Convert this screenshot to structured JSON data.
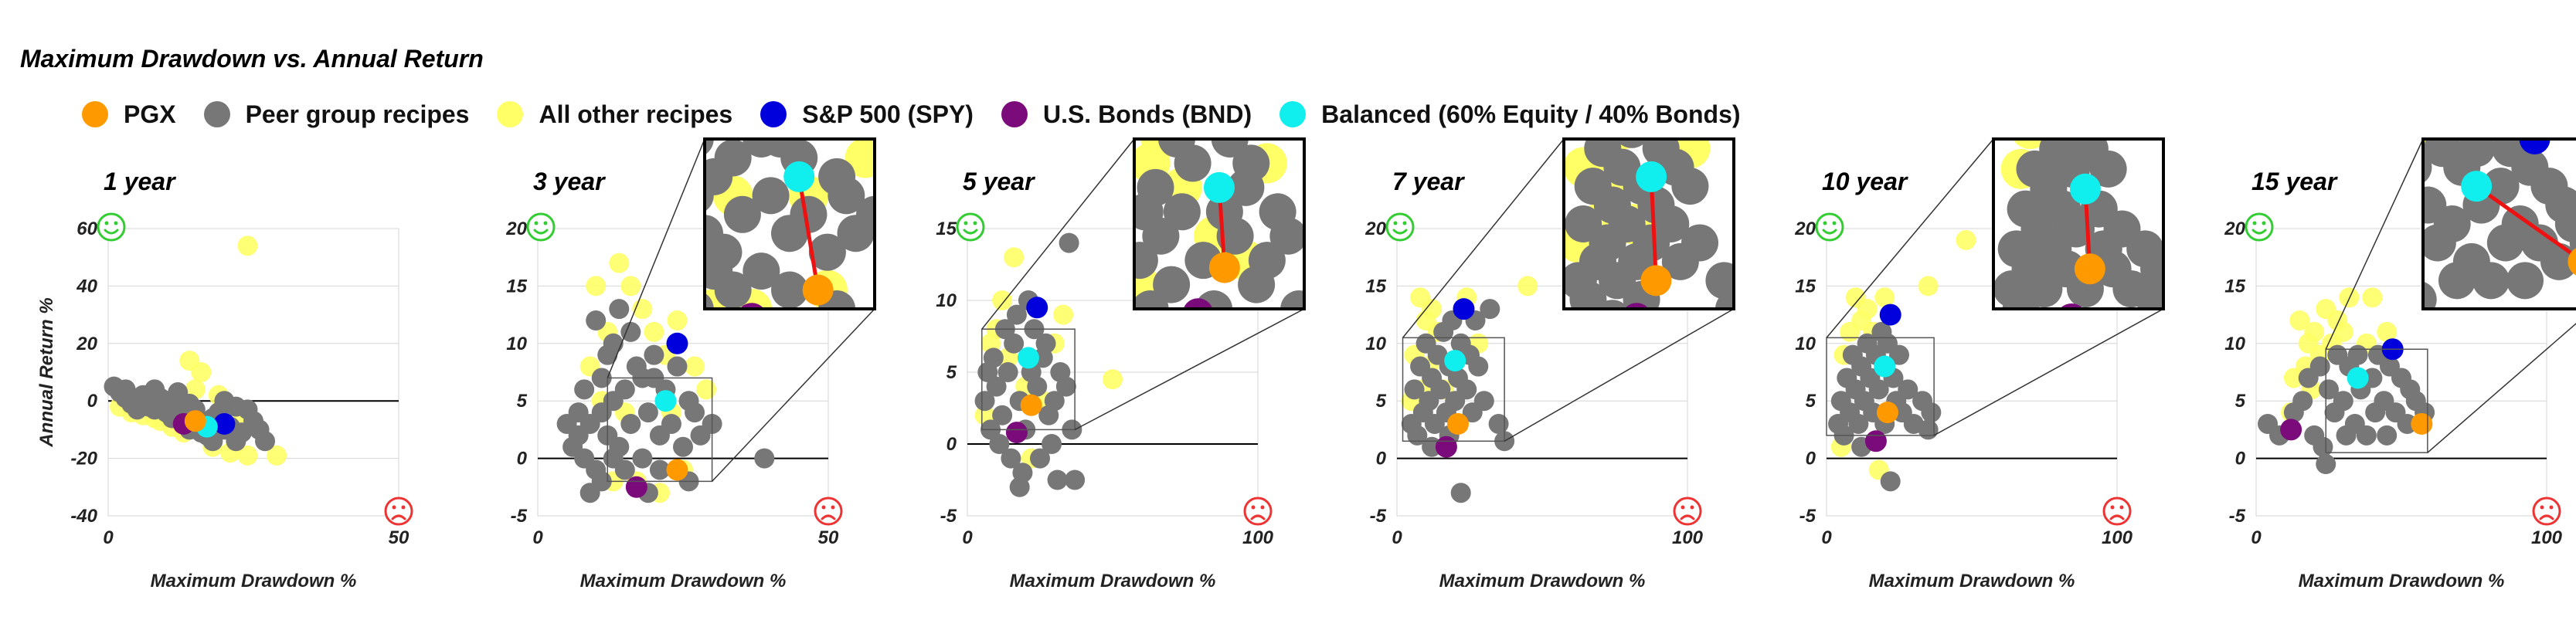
{
  "title": "Maximum Drawdown vs. Annual Return",
  "colors": {
    "pgx": "#FF9900",
    "peer": "#777777",
    "other": "#FFFF66",
    "spy": "#0000DD",
    "bnd": "#7B0A7B",
    "balanced": "#11EEEE",
    "smiley_good": "#33CC33",
    "smiley_bad": "#EE3333",
    "link_line": "#EE1111"
  },
  "legend": [
    {
      "label": "PGX",
      "color_key": "pgx",
      "icon": "legend-dot"
    },
    {
      "label": "Peer group recipes",
      "color_key": "peer",
      "icon": "legend-dot"
    },
    {
      "label": "All other recipes",
      "color_key": "other",
      "icon": "legend-dot"
    },
    {
      "label": "S&P 500 (SPY)",
      "color_key": "spy",
      "icon": "legend-dot"
    },
    {
      "label": "U.S. Bonds (BND)",
      "color_key": "bnd",
      "icon": "legend-dot"
    },
    {
      "label": "Balanced (60% Equity / 40% Bonds)",
      "color_key": "balanced",
      "icon": "legend-dot"
    }
  ],
  "chart_data": [
    {
      "type": "scatter",
      "title": "1 year",
      "xlabel": "Maximum Drawdown %",
      "ylabel": "Annual Return %",
      "xlim": [
        0,
        50
      ],
      "ylim": [
        -40,
        60
      ],
      "xticks": [
        0,
        50
      ],
      "yticks": [
        -40,
        -20,
        0,
        20,
        40,
        60
      ],
      "grid": true,
      "zoom_inset": false,
      "highlight": {
        "pgx": [
          15,
          -7
        ],
        "spy": [
          20,
          -8
        ],
        "bnd": [
          13,
          -8
        ],
        "balanced": [
          17,
          -9
        ]
      },
      "peer_points": [
        [
          1,
          5
        ],
        [
          2,
          3
        ],
        [
          3,
          1
        ],
        [
          4,
          -1
        ],
        [
          5,
          0
        ],
        [
          6,
          2
        ],
        [
          7,
          -2
        ],
        [
          8,
          -3
        ],
        [
          9,
          1
        ],
        [
          10,
          -4
        ],
        [
          11,
          -6
        ],
        [
          12,
          -2
        ],
        [
          13,
          -5
        ],
        [
          14,
          -10
        ],
        [
          15,
          -3
        ],
        [
          16,
          -8
        ],
        [
          17,
          -12
        ],
        [
          18,
          -6
        ],
        [
          19,
          -4
        ],
        [
          20,
          0
        ],
        [
          21,
          -9
        ],
        [
          22,
          -14
        ],
        [
          23,
          -11
        ],
        [
          24,
          -3
        ],
        [
          25,
          -7
        ],
        [
          26,
          -10
        ],
        [
          3,
          4
        ],
        [
          5,
          -3
        ],
        [
          8,
          4
        ],
        [
          10,
          0
        ],
        [
          12,
          3
        ],
        [
          14,
          -1
        ],
        [
          16,
          -11
        ],
        [
          18,
          -14
        ],
        [
          20,
          -10
        ],
        [
          22,
          -2
        ],
        [
          27,
          -14
        ]
      ],
      "other_points": [
        [
          24,
          54
        ],
        [
          14,
          14
        ],
        [
          16,
          10
        ],
        [
          2,
          -2
        ],
        [
          4,
          -4
        ],
        [
          6,
          -5
        ],
        [
          9,
          -7
        ],
        [
          11,
          -9
        ],
        [
          13,
          -11
        ],
        [
          18,
          -16
        ],
        [
          21,
          -18
        ],
        [
          24,
          -19
        ],
        [
          29,
          -19
        ],
        [
          8,
          -6
        ],
        [
          15,
          4
        ],
        [
          19,
          2
        ],
        [
          22,
          -5
        ]
      ]
    },
    {
      "type": "scatter",
      "title": "3 year",
      "xlabel": "Maximum Drawdown %",
      "ylabel": "Annual Return %",
      "xlim": [
        0,
        50
      ],
      "ylim": [
        -5,
        20
      ],
      "xticks": [
        0,
        50
      ],
      "yticks": [
        -5,
        0,
        5,
        10,
        15,
        20
      ],
      "grid": true,
      "zoom_inset": true,
      "zoom_box": {
        "x": [
          12,
          30
        ],
        "y": [
          -2,
          7
        ]
      },
      "highlight": {
        "pgx": [
          24,
          -1
        ],
        "spy": [
          24,
          10
        ],
        "bnd": [
          17,
          -2.5
        ],
        "balanced": [
          22,
          5
        ]
      },
      "peer_points": [
        [
          5,
          3
        ],
        [
          6,
          1
        ],
        [
          7,
          2
        ],
        [
          8,
          0
        ],
        [
          9,
          3
        ],
        [
          10,
          -1
        ],
        [
          11,
          4
        ],
        [
          12,
          2
        ],
        [
          13,
          5
        ],
        [
          14,
          1
        ],
        [
          15,
          6
        ],
        [
          16,
          3
        ],
        [
          17,
          8
        ],
        [
          18,
          0
        ],
        [
          19,
          4
        ],
        [
          20,
          7
        ],
        [
          21,
          2
        ],
        [
          22,
          6
        ],
        [
          23,
          3
        ],
        [
          24,
          8
        ],
        [
          25,
          1
        ],
        [
          26,
          5
        ],
        [
          27,
          4
        ],
        [
          28,
          2
        ],
        [
          30,
          3
        ],
        [
          10,
          12
        ],
        [
          12,
          9
        ],
        [
          14,
          13
        ],
        [
          16,
          11
        ],
        [
          18,
          7
        ],
        [
          20,
          9
        ],
        [
          9,
          -3
        ],
        [
          11,
          -2
        ],
        [
          13,
          0
        ],
        [
          15,
          -1
        ],
        [
          19,
          -3
        ],
        [
          21,
          -1
        ],
        [
          26,
          -2
        ],
        [
          39,
          0
        ],
        [
          13,
          10
        ],
        [
          11,
          7
        ],
        [
          8,
          6
        ],
        [
          7,
          4
        ]
      ],
      "other_points": [
        [
          14,
          17
        ],
        [
          16,
          15
        ],
        [
          10,
          15
        ],
        [
          12,
          11
        ],
        [
          18,
          13
        ],
        [
          20,
          11
        ],
        [
          22,
          9
        ],
        [
          24,
          12
        ],
        [
          27,
          8
        ],
        [
          29,
          6
        ],
        [
          11,
          5
        ],
        [
          9,
          8
        ],
        [
          15,
          4
        ],
        [
          17,
          -2
        ],
        [
          21,
          -3
        ],
        [
          23,
          4
        ],
        [
          25,
          -1
        ],
        [
          13,
          -2
        ]
      ]
    },
    {
      "type": "scatter",
      "title": "5 year",
      "xlabel": "Maximum Drawdown %",
      "ylabel": "Annual Return %",
      "xlim": [
        0,
        100
      ],
      "ylim": [
        -5,
        15
      ],
      "xticks": [
        0,
        100
      ],
      "yticks": [
        -5,
        0,
        5,
        10,
        15
      ],
      "grid": true,
      "zoom_inset": true,
      "zoom_box": {
        "x": [
          5,
          37
        ],
        "y": [
          1,
          8
        ]
      },
      "highlight": {
        "pgx": [
          22,
          2.7
        ],
        "spy": [
          24,
          9.5
        ],
        "bnd": [
          17,
          0.8
        ],
        "balanced": [
          21,
          6
        ]
      },
      "peer_points": [
        [
          6,
          3
        ],
        [
          8,
          1
        ],
        [
          10,
          4
        ],
        [
          12,
          2
        ],
        [
          14,
          5
        ],
        [
          16,
          7
        ],
        [
          18,
          3
        ],
        [
          20,
          1
        ],
        [
          22,
          5
        ],
        [
          24,
          4
        ],
        [
          26,
          6
        ],
        [
          28,
          2
        ],
        [
          30,
          3
        ],
        [
          32,
          5
        ],
        [
          34,
          4
        ],
        [
          36,
          1
        ],
        [
          9,
          6
        ],
        [
          13,
          8
        ],
        [
          17,
          9
        ],
        [
          23,
          8
        ],
        [
          27,
          7
        ],
        [
          15,
          -1
        ],
        [
          19,
          -2
        ],
        [
          25,
          -1
        ],
        [
          29,
          0
        ],
        [
          31,
          -2.5
        ],
        [
          37,
          -2.5
        ],
        [
          11,
          0
        ],
        [
          35,
          14
        ],
        [
          21,
          10
        ],
        [
          7,
          5
        ],
        [
          18,
          -3
        ]
      ],
      "other_points": [
        [
          16,
          13
        ],
        [
          12,
          10
        ],
        [
          8,
          7
        ],
        [
          10,
          8
        ],
        [
          14,
          6
        ],
        [
          20,
          4
        ],
        [
          26,
          3
        ],
        [
          30,
          7
        ],
        [
          50,
          4.5
        ],
        [
          6,
          2
        ],
        [
          22,
          -1
        ],
        [
          33,
          9
        ]
      ]
    },
    {
      "type": "scatter",
      "title": "7 year",
      "xlabel": "Maximum Drawdown %",
      "ylabel": "Annual Return %",
      "xlim": [
        0,
        100
      ],
      "ylim": [
        -5,
        20
      ],
      "xticks": [
        0,
        100
      ],
      "yticks": [
        -5,
        0,
        5,
        10,
        15,
        20
      ],
      "grid": true,
      "zoom_inset": true,
      "zoom_box": {
        "x": [
          2,
          37
        ],
        "y": [
          1.5,
          10.5
        ]
      },
      "highlight": {
        "pgx": [
          21,
          3
        ],
        "spy": [
          23,
          13
        ],
        "bnd": [
          17,
          1
        ],
        "balanced": [
          20,
          8.5
        ]
      },
      "peer_points": [
        [
          5,
          3
        ],
        [
          6,
          6
        ],
        [
          7,
          2
        ],
        [
          8,
          8
        ],
        [
          9,
          4
        ],
        [
          10,
          10
        ],
        [
          11,
          5
        ],
        [
          12,
          7
        ],
        [
          13,
          3
        ],
        [
          14,
          9
        ],
        [
          15,
          6
        ],
        [
          16,
          11
        ],
        [
          17,
          4
        ],
        [
          18,
          8
        ],
        [
          19,
          12
        ],
        [
          20,
          5
        ],
        [
          21,
          7
        ],
        [
          22,
          10
        ],
        [
          24,
          6
        ],
        [
          25,
          9
        ],
        [
          26,
          4
        ],
        [
          27,
          12
        ],
        [
          28,
          8
        ],
        [
          30,
          5
        ],
        [
          32,
          13
        ],
        [
          35,
          3
        ],
        [
          37,
          1.5
        ],
        [
          22,
          -3
        ],
        [
          12,
          1
        ],
        [
          18,
          2
        ]
      ],
      "other_points": [
        [
          8,
          14
        ],
        [
          10,
          12
        ],
        [
          12,
          13
        ],
        [
          14,
          11
        ],
        [
          6,
          9
        ],
        [
          9,
          6
        ],
        [
          11,
          8
        ],
        [
          16,
          6
        ],
        [
          24,
          14
        ],
        [
          28,
          10
        ],
        [
          45,
          15
        ],
        [
          5,
          5
        ]
      ]
    },
    {
      "type": "scatter",
      "title": "10 year",
      "xlabel": "Maximum Drawdown %",
      "ylabel": "Annual Return %",
      "xlim": [
        0,
        100
      ],
      "ylim": [
        -5,
        20
      ],
      "xticks": [
        0,
        100
      ],
      "yticks": [
        -5,
        0,
        5,
        10,
        15,
        20
      ],
      "grid": true,
      "zoom_inset": true,
      "zoom_box": {
        "x": [
          0,
          37
        ],
        "y": [
          2,
          10.5
        ]
      },
      "highlight": {
        "pgx": [
          21,
          4
        ],
        "spy": [
          22,
          12.5
        ],
        "bnd": [
          17,
          1.5
        ],
        "balanced": [
          20,
          8
        ]
      },
      "peer_points": [
        [
          4,
          3
        ],
        [
          5,
          5
        ],
        [
          6,
          2
        ],
        [
          7,
          7
        ],
        [
          8,
          4
        ],
        [
          9,
          9
        ],
        [
          10,
          6
        ],
        [
          11,
          3
        ],
        [
          12,
          8
        ],
        [
          13,
          5
        ],
        [
          14,
          10
        ],
        [
          15,
          7
        ],
        [
          16,
          4
        ],
        [
          17,
          9
        ],
        [
          18,
          6
        ],
        [
          19,
          11
        ],
        [
          20,
          3
        ],
        [
          21,
          10
        ],
        [
          23,
          7
        ],
        [
          24,
          5
        ],
        [
          25,
          9
        ],
        [
          26,
          4
        ],
        [
          28,
          6
        ],
        [
          30,
          3
        ],
        [
          33,
          5
        ],
        [
          36,
          4
        ],
        [
          22,
          -2
        ],
        [
          35,
          2.5
        ],
        [
          12,
          1
        ]
      ],
      "other_points": [
        [
          10,
          14
        ],
        [
          12,
          12
        ],
        [
          8,
          11
        ],
        [
          14,
          13
        ],
        [
          6,
          9
        ],
        [
          16,
          11
        ],
        [
          20,
          14
        ],
        [
          35,
          15
        ],
        [
          48,
          19
        ],
        [
          5,
          1
        ],
        [
          18,
          -1
        ]
      ]
    },
    {
      "type": "scatter",
      "title": "15 year",
      "xlabel": "Maximum Drawdown %",
      "ylabel": "Annual Return %",
      "xlim": [
        0,
        100
      ],
      "ylim": [
        -5,
        20
      ],
      "xticks": [
        0,
        100
      ],
      "yticks": [
        -5,
        0,
        5,
        10,
        15,
        20
      ],
      "grid": true,
      "zoom_inset": true,
      "zoom_box": {
        "x": [
          24,
          59
        ],
        "y": [
          0.5,
          9.5
        ]
      },
      "highlight": {
        "pgx": [
          57,
          3
        ],
        "spy": [
          47,
          9.5
        ],
        "bnd": [
          12,
          2.5
        ],
        "balanced": [
          35,
          7
        ]
      },
      "peer_points": [
        [
          4,
          3
        ],
        [
          8,
          2
        ],
        [
          13,
          4
        ],
        [
          16,
          5
        ],
        [
          18,
          7
        ],
        [
          20,
          2
        ],
        [
          22,
          8
        ],
        [
          24,
          -0.5
        ],
        [
          25,
          6
        ],
        [
          27,
          4
        ],
        [
          28,
          9
        ],
        [
          30,
          5
        ],
        [
          31,
          2
        ],
        [
          32,
          8
        ],
        [
          34,
          3
        ],
        [
          35,
          9
        ],
        [
          36,
          6
        ],
        [
          38,
          2
        ],
        [
          40,
          7
        ],
        [
          41,
          4
        ],
        [
          42,
          9
        ],
        [
          44,
          5
        ],
        [
          45,
          2
        ],
        [
          46,
          8
        ],
        [
          48,
          4
        ],
        [
          50,
          7
        ],
        [
          52,
          3
        ],
        [
          53,
          6
        ],
        [
          55,
          5
        ],
        [
          58,
          4
        ],
        [
          23,
          1
        ]
      ],
      "other_points": [
        [
          15,
          12
        ],
        [
          18,
          10
        ],
        [
          20,
          11
        ],
        [
          22,
          9
        ],
        [
          24,
          13
        ],
        [
          26,
          10
        ],
        [
          28,
          12
        ],
        [
          30,
          11
        ],
        [
          32,
          14
        ],
        [
          13,
          7
        ],
        [
          17,
          8
        ],
        [
          19,
          6
        ],
        [
          12,
          4
        ],
        [
          40,
          14
        ],
        [
          45,
          11
        ],
        [
          38,
          10
        ]
      ]
    }
  ]
}
